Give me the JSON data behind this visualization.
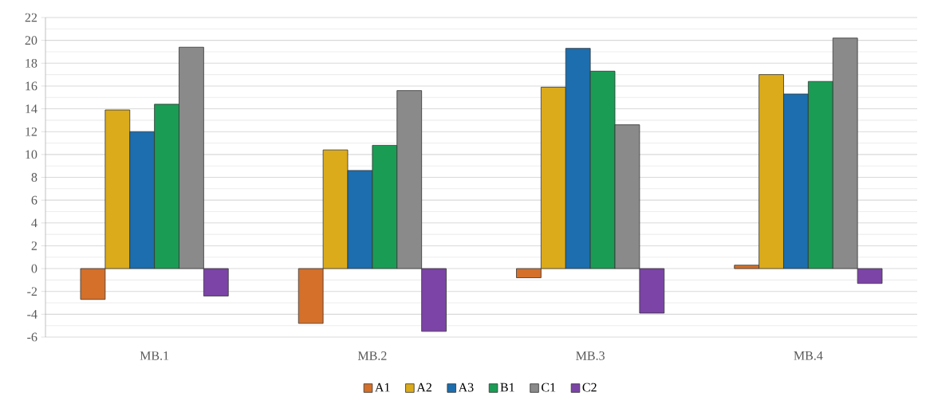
{
  "chart_data": {
    "type": "bar",
    "categories": [
      "MB.1",
      "MB.2",
      "MB.3",
      "MB.4"
    ],
    "series": [
      {
        "name": "A1",
        "color": "#d4702a",
        "values": [
          -2.7,
          -4.8,
          -0.8,
          0.3
        ]
      },
      {
        "name": "A2",
        "color": "#dbab1c",
        "values": [
          13.9,
          10.4,
          15.9,
          17.0
        ]
      },
      {
        "name": "A3",
        "color": "#1c6eae",
        "values": [
          12.0,
          8.6,
          19.3,
          15.3
        ]
      },
      {
        "name": "B1",
        "color": "#1a9c55",
        "values": [
          14.4,
          10.8,
          17.3,
          16.4
        ]
      },
      {
        "name": "C1",
        "color": "#8a8a8a",
        "values": [
          19.4,
          15.6,
          12.6,
          20.2
        ]
      },
      {
        "name": "C2",
        "color": "#7b44a6",
        "values": [
          -2.4,
          -5.5,
          -3.9,
          -1.3
        ]
      }
    ],
    "ylim": [
      -6,
      22
    ],
    "yticks": [
      -6,
      -4,
      -2,
      0,
      2,
      4,
      6,
      8,
      10,
      12,
      14,
      16,
      18,
      20,
      22
    ],
    "grid": "y",
    "legend": "bottom"
  }
}
